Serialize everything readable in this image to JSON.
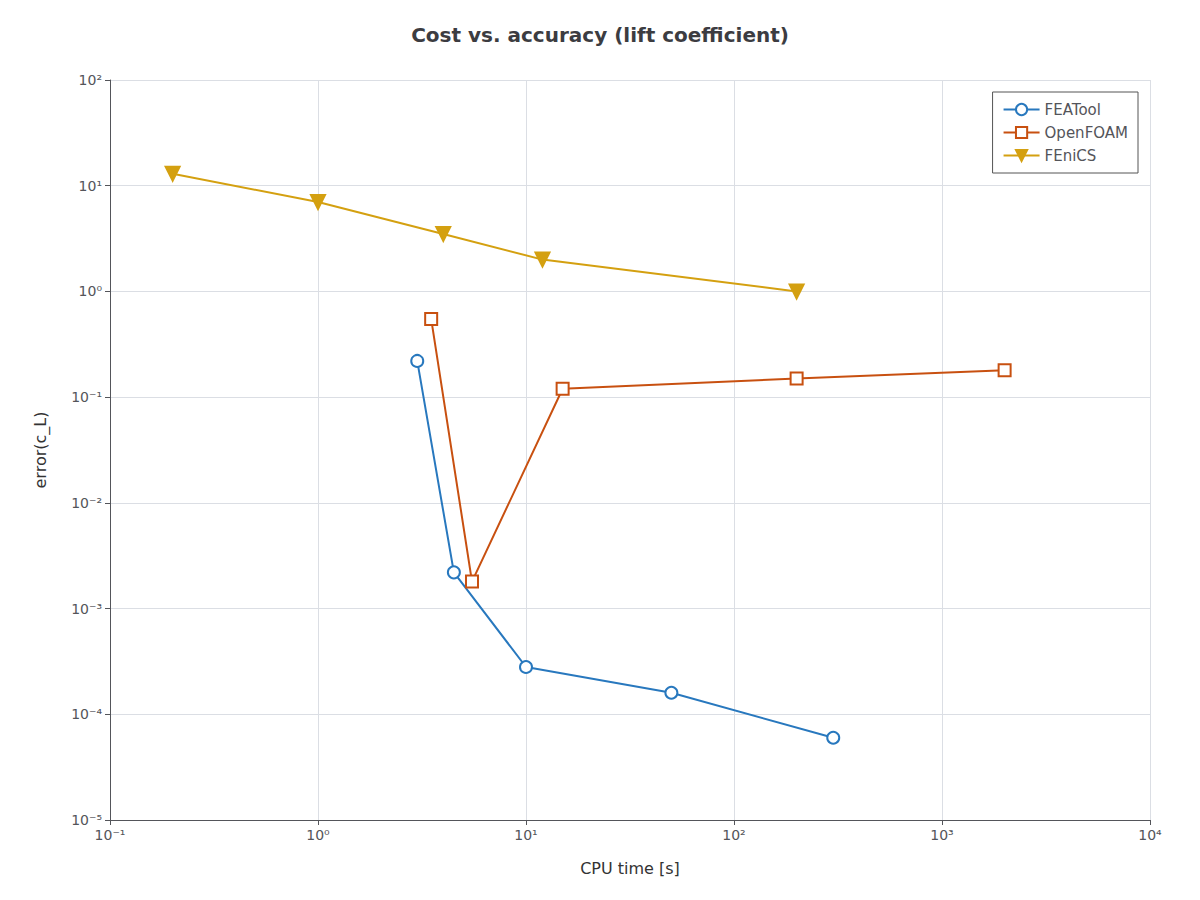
{
  "chart_data": {
    "type": "line",
    "title": "Cost vs. accuracy (lift coefficient)",
    "xlabel": "CPU time [s]",
    "ylabel": "error(c_L)",
    "log": true,
    "grid": true,
    "legend": "upper right",
    "xlim": [
      0.1,
      10000
    ],
    "ylim": [
      1e-05,
      100
    ],
    "xticks": [
      {
        "value": 0.1,
        "label": "10⁻¹"
      },
      {
        "value": 1,
        "label": "10⁰"
      },
      {
        "value": 10,
        "label": "10¹"
      },
      {
        "value": 100,
        "label": "10²"
      },
      {
        "value": 1000,
        "label": "10³"
      },
      {
        "value": 10000,
        "label": "10⁴"
      }
    ],
    "yticks": [
      {
        "value": 1e-05,
        "label": "10⁻⁵"
      },
      {
        "value": 0.0001,
        "label": "10⁻⁴"
      },
      {
        "value": 0.001,
        "label": "10⁻³"
      },
      {
        "value": 0.01,
        "label": "10⁻²"
      },
      {
        "value": 0.1,
        "label": "10⁻¹"
      },
      {
        "value": 1,
        "label": "10⁰"
      },
      {
        "value": 10,
        "label": "10¹"
      },
      {
        "value": 100,
        "label": "10²"
      }
    ],
    "series": [
      {
        "name": "FEATool",
        "color": "#2878BE",
        "marker": "circle-open",
        "x": [
          3.0,
          4.5,
          10.0,
          50.0,
          300.0
        ],
        "values": [
          0.22,
          0.0022,
          0.00028,
          0.00016,
          6e-05
        ]
      },
      {
        "name": "OpenFOAM",
        "color": "#C85010",
        "marker": "square-open",
        "x": [
          3.5,
          5.5,
          15.0,
          200.0,
          2000.0
        ],
        "values": [
          0.55,
          0.0018,
          0.12,
          0.15,
          0.18
        ]
      },
      {
        "name": "FEniCS",
        "color": "#D4A010",
        "marker": "triangle-down",
        "x": [
          0.2,
          1.0,
          4.0,
          12.0,
          200.0
        ],
        "values": [
          13.0,
          7.0,
          3.5,
          2.0,
          1.0
        ]
      }
    ]
  }
}
